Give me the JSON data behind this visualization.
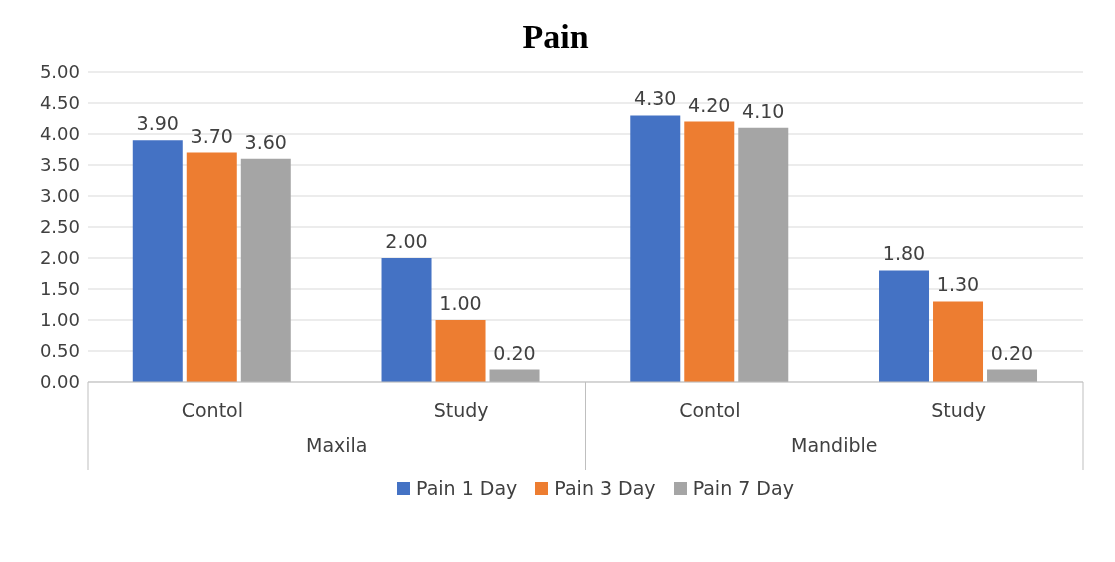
{
  "chart_data": {
    "type": "bar",
    "title": "Pain",
    "categories": [
      "Contol",
      "Study",
      "Contol",
      "Study"
    ],
    "series": [
      {
        "name": "Pain 1 Day",
        "color": "#4472c4",
        "values": [
          3.9,
          2.0,
          4.3,
          1.8
        ],
        "value_labels": [
          "3.90",
          "2.00",
          "4.30",
          "1.80"
        ]
      },
      {
        "name": "Pain 3 Day",
        "color": "#ed7d31",
        "values": [
          3.7,
          1.0,
          4.2,
          1.3
        ],
        "value_labels": [
          "3.70",
          "1.00",
          "4.20",
          "1.30"
        ]
      },
      {
        "name": "Pain 7 Day",
        "color": "#a5a5a5",
        "values": [
          3.6,
          0.2,
          4.1,
          0.2
        ],
        "value_labels": [
          "3.60",
          "0.20",
          "4.10",
          "0.20"
        ]
      }
    ],
    "ylim": [
      0,
      5
    ],
    "yticks": [
      {
        "value": 0,
        "label": "0.00"
      },
      {
        "value": 0.5,
        "label": "0.50"
      },
      {
        "value": 1,
        "label": "1.00"
      },
      {
        "value": 1.5,
        "label": "1.50"
      },
      {
        "value": 2,
        "label": "2.00"
      },
      {
        "value": 2.5,
        "label": "2.50"
      },
      {
        "value": 3,
        "label": "3.00"
      },
      {
        "value": 3.5,
        "label": "3.50"
      },
      {
        "value": 4,
        "label": "4.00"
      },
      {
        "value": 4.5,
        "label": "4.50"
      },
      {
        "value": 5,
        "label": "5.00"
      }
    ],
    "grid": "y",
    "legend": "bottom",
    "annotations": [
      "Maxila",
      "Mandible"
    ]
  }
}
